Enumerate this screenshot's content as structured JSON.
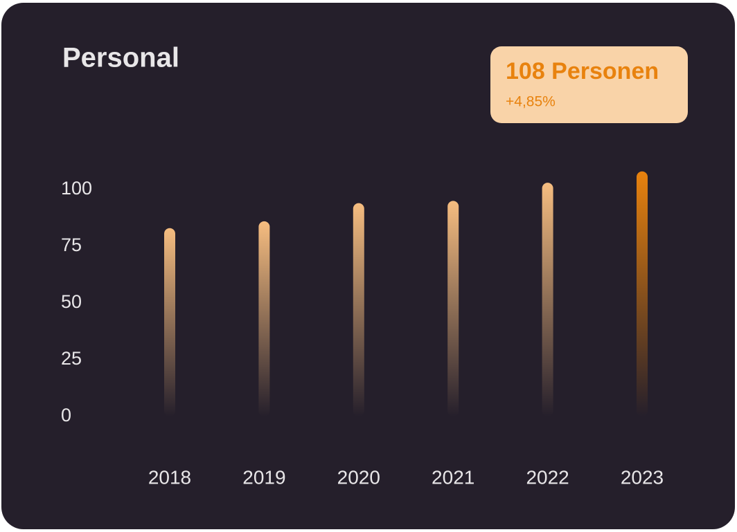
{
  "chart_data": {
    "type": "bar",
    "title": "Personal",
    "annotation": {
      "title": "108 Personen",
      "subtitle": "+4,85%"
    },
    "categories": [
      "2018",
      "2019",
      "2020",
      "2021",
      "2022",
      "2023"
    ],
    "values": [
      83,
      86,
      94,
      95,
      103,
      108
    ],
    "colors": [
      "#f6bd80",
      "#f6bd80",
      "#f6bd80",
      "#f6bd80",
      "#f6bd80",
      "#e8820e"
    ],
    "ylim": [
      0,
      110
    ],
    "yticks": [
      0,
      25,
      50,
      75,
      100
    ],
    "grid": false
  }
}
